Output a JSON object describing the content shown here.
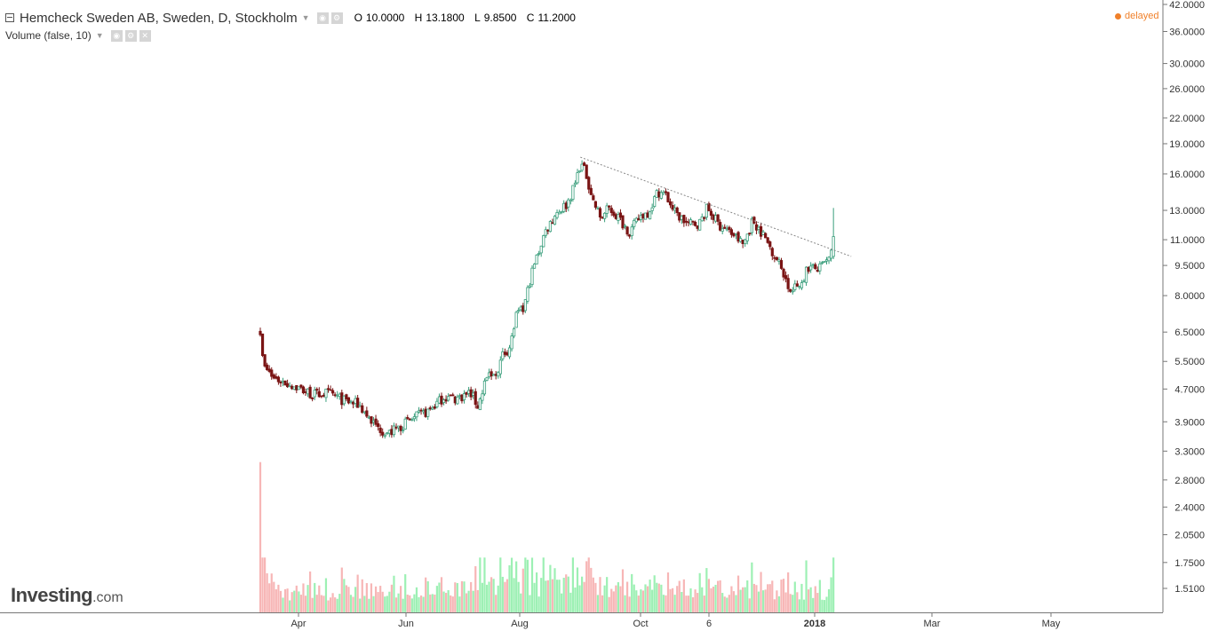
{
  "header": {
    "title": "Hemcheck Sweden AB, Sweden, D, Stockholm",
    "ohlc": [
      {
        "key": "O",
        "value": "10.0000"
      },
      {
        "key": "H",
        "value": "13.1800"
      },
      {
        "key": "L",
        "value": "9.8500"
      },
      {
        "key": "C",
        "value": "11.2000"
      }
    ],
    "volume_label": "Volume (false, 10)",
    "status": "delayed"
  },
  "branding": {
    "logo": "Investing",
    "logo_suffix": ".com"
  },
  "colors": {
    "up": "#3a9e7c",
    "down": "#7a1414",
    "vol_up": "#9df0b4",
    "vol_down": "#f7b6b6",
    "trend": "#888888"
  },
  "chart_data": {
    "type": "candlestick",
    "y_scale": "log",
    "ylim": [
      1.35,
      42.0
    ],
    "y_ticks": [
      "42.0000",
      "36.0000",
      "30.0000",
      "26.0000",
      "22.0000",
      "19.0000",
      "16.0000",
      "13.0000",
      "11.0000",
      "9.5000",
      "8.0000",
      "6.5000",
      "5.5000",
      "4.7000",
      "3.9000",
      "3.3000",
      "2.8000",
      "2.4000",
      "2.0500",
      "1.7500",
      "1.5100"
    ],
    "x_ticks": [
      "Apr",
      "Jun",
      "Aug",
      "Oct",
      "6",
      "2018",
      "Mar",
      "May"
    ],
    "price_path": [
      [
        "2017-03-15",
        6.6
      ],
      [
        "2017-03-17",
        5.3
      ],
      [
        "2017-03-22",
        5.0
      ],
      [
        "2017-04-01",
        4.8
      ],
      [
        "2017-04-12",
        4.55
      ],
      [
        "2017-04-20",
        4.6
      ],
      [
        "2017-04-28",
        4.4
      ],
      [
        "2017-05-06",
        4.3
      ],
      [
        "2017-05-15",
        3.8
      ],
      [
        "2017-05-22",
        3.65
      ],
      [
        "2017-05-28",
        3.8
      ],
      [
        "2017-06-05",
        4.0
      ],
      [
        "2017-06-12",
        4.15
      ],
      [
        "2017-06-20",
        4.5
      ],
      [
        "2017-06-26",
        4.45
      ],
      [
        "2017-07-04",
        4.6
      ],
      [
        "2017-07-08",
        4.25
      ],
      [
        "2017-07-12",
        5.0
      ],
      [
        "2017-07-17",
        5.05
      ],
      [
        "2017-07-21",
        5.7
      ],
      [
        "2017-07-25",
        6.0
      ],
      [
        "2017-07-28",
        7.1
      ],
      [
        "2017-08-01",
        7.4
      ],
      [
        "2017-08-05",
        9.0
      ],
      [
        "2017-08-09",
        10.3
      ],
      [
        "2017-08-12",
        11.4
      ],
      [
        "2017-08-18",
        12.8
      ],
      [
        "2017-08-24",
        13.5
      ],
      [
        "2017-08-28",
        15.0
      ],
      [
        "2017-08-31",
        17.0
      ],
      [
        "2017-09-03",
        16.0
      ],
      [
        "2017-09-07",
        13.6
      ],
      [
        "2017-09-11",
        12.4
      ],
      [
        "2017-09-15",
        13.2
      ],
      [
        "2017-09-20",
        12.5
      ],
      [
        "2017-09-26",
        11.5
      ],
      [
        "2017-10-02",
        12.6
      ],
      [
        "2017-10-06",
        12.9
      ],
      [
        "2017-10-11",
        14.5
      ],
      [
        "2017-10-15",
        14.2
      ],
      [
        "2017-10-20",
        12.8
      ],
      [
        "2017-10-27",
        12.0
      ],
      [
        "2017-11-02",
        12.1
      ],
      [
        "2017-11-06",
        13.2
      ],
      [
        "2017-11-12",
        12.0
      ],
      [
        "2017-11-20",
        11.3
      ],
      [
        "2017-11-25",
        10.7
      ],
      [
        "2017-11-30",
        12.3
      ],
      [
        "2017-12-04",
        11.6
      ],
      [
        "2017-12-10",
        10.4
      ],
      [
        "2017-12-16",
        9.2
      ],
      [
        "2017-12-20",
        8.1
      ],
      [
        "2017-12-26",
        8.7
      ],
      [
        "2017-12-29",
        9.4
      ],
      [
        "2018-01-04",
        9.3
      ],
      [
        "2018-01-10",
        9.9
      ],
      [
        "2018-01-12",
        11.2
      ]
    ],
    "price_path_note_removed": true,
    "volume": {
      "peak_first": 3.1,
      "axis": "same as price axis (volume bars drawn from bottom)"
    },
    "trendline": {
      "from": [
        "2017-08-31",
        17.6
      ],
      "to": [
        "2018-01-21",
        10.0
      ],
      "style": "dotted"
    }
  }
}
